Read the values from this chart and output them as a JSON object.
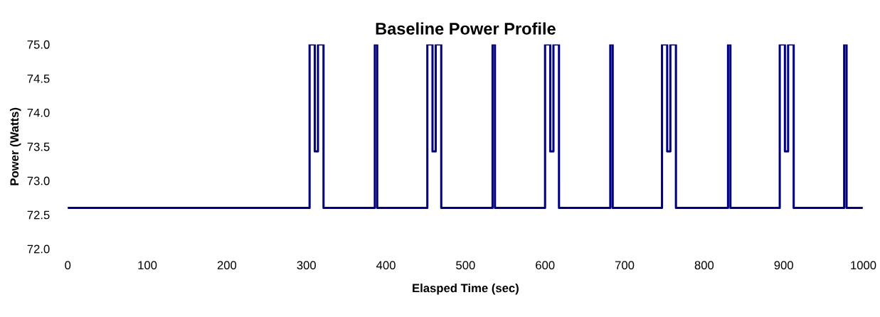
{
  "chart_data": {
    "type": "step",
    "title": "Baseline Power Profile",
    "xlabel": "Elasped Time (sec)",
    "ylabel": "Power (Watts)",
    "series": [
      {
        "color": "#000080",
        "x": [
          0,
          304,
          310.5,
          314.5,
          321.5,
          386,
          389,
          452,
          458.5,
          462.5,
          469.5,
          534,
          537,
          600,
          606.5,
          610.5,
          617.5,
          682,
          685,
          747,
          753.5,
          757.5,
          764.5,
          830,
          833,
          895,
          901.5,
          905.5,
          912.5,
          976,
          979,
          998
        ],
        "values": [
          72.6,
          75.0,
          73.43,
          75.0,
          72.6,
          75.0,
          72.6,
          75.0,
          73.43,
          75.0,
          72.6,
          75.0,
          72.6,
          75.0,
          73.43,
          75.0,
          72.6,
          75.0,
          72.6,
          75.0,
          73.43,
          75.0,
          72.6,
          75.0,
          72.6,
          75.0,
          73.43,
          75.0,
          72.6,
          75.0,
          72.6,
          72.6
        ]
      }
    ],
    "xlim": [
      0,
      1000
    ],
    "ylim": [
      72.0,
      75.0
    ],
    "xticks": [
      0,
      100,
      200,
      300,
      400,
      500,
      600,
      700,
      800,
      900,
      1000
    ],
    "yticks": [
      {
        "value": 72.0,
        "label": "72.0"
      },
      {
        "value": 72.5,
        "label": "72.5"
      },
      {
        "value": 73.0,
        "label": "73.0"
      },
      {
        "value": 73.5,
        "label": "73.5"
      },
      {
        "value": 74.0,
        "label": "74.0"
      },
      {
        "value": 74.5,
        "label": "74.5"
      },
      {
        "value": 75.0,
        "label": "75.0"
      }
    ],
    "grid": false,
    "legend": false
  }
}
